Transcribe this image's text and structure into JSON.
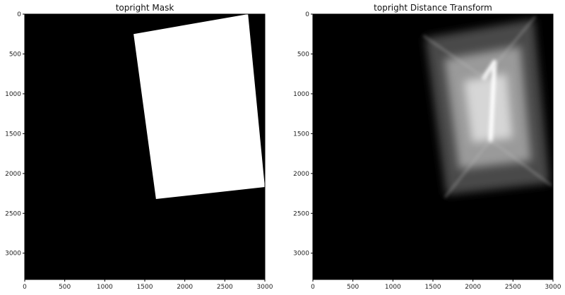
{
  "chart_data": [
    {
      "type": "heatmap",
      "title": "topright Mask",
      "xlim": [
        0,
        3000
      ],
      "ylim": [
        3330,
        0
      ],
      "xticks": [
        "0",
        "500",
        "1000",
        "1500",
        "2000",
        "2500",
        "3000"
      ],
      "yticks": [
        "0",
        "500",
        "1000",
        "1500",
        "2000",
        "2500",
        "3000"
      ],
      "xtick_values": [
        0,
        500,
        1000,
        1500,
        2000,
        2500,
        3000
      ],
      "ytick_values": [
        0,
        500,
        1000,
        1500,
        2000,
        2500,
        3000
      ],
      "colormap": "gray",
      "background": "#000000",
      "foreground": "#ffffff",
      "quad_corners": [
        [
          1360,
          250
        ],
        [
          2790,
          0
        ],
        [
          3000,
          2170
        ],
        [
          1640,
          2320
        ]
      ]
    },
    {
      "type": "heatmap",
      "title": "topright Distance Transform",
      "xlim": [
        0,
        3000
      ],
      "ylim": [
        3330,
        0
      ],
      "xticks": [
        "0",
        "500",
        "1000",
        "1500",
        "2000",
        "2500",
        "3000"
      ],
      "yticks": [
        "0",
        "500",
        "1000",
        "1500",
        "2000",
        "2500",
        "3000"
      ],
      "xtick_values": [
        0,
        500,
        1000,
        1500,
        2000,
        2500,
        3000
      ],
      "ytick_values": [
        0,
        500,
        1000,
        1500,
        2000,
        2500,
        3000
      ],
      "colormap": "gray",
      "background": "#000000",
      "quad_corners": [
        [
          1380,
          270
        ],
        [
          2780,
          30
        ],
        [
          2980,
          2150
        ],
        [
          1650,
          2300
        ]
      ],
      "ridge": [
        [
          2140,
          800
        ],
        [
          2270,
          600
        ],
        [
          2220,
          1580
        ]
      ]
    }
  ]
}
